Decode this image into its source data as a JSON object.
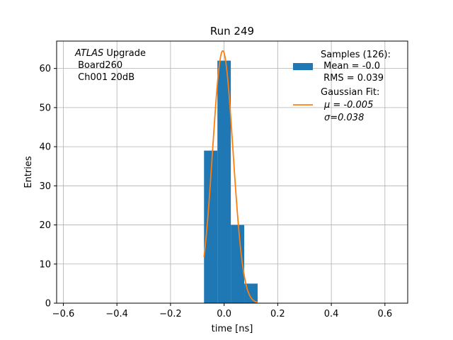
{
  "chart_data": {
    "type": "bar",
    "title": "Run 249",
    "xlabel": "time [ns]",
    "ylabel": "Entries",
    "xlim": [
      -0.625,
      0.685
    ],
    "ylim": [
      0,
      67
    ],
    "grid": true,
    "x_ticks": [
      -0.6,
      -0.4,
      -0.2,
      0.0,
      0.2,
      0.4,
      0.6
    ],
    "x_tick_labels": [
      "−0.6",
      "−0.4",
      "−0.2",
      "0.0",
      "0.2",
      "0.4",
      "0.6"
    ],
    "y_ticks": [
      0,
      10,
      20,
      30,
      40,
      50,
      60
    ],
    "y_tick_labels": [
      "0",
      "10",
      "20",
      "30",
      "40",
      "50",
      "60"
    ],
    "histogram": {
      "color": "#1f77b4",
      "bins": [
        {
          "left": -0.075,
          "right": -0.025,
          "count": 39
        },
        {
          "left": -0.025,
          "right": 0.025,
          "count": 62
        },
        {
          "left": 0.025,
          "right": 0.075,
          "count": 20
        },
        {
          "left": 0.075,
          "right": 0.125,
          "count": 5
        }
      ]
    },
    "fit": {
      "type": "gaussian",
      "color": "#ff7f0e",
      "mu": -0.005,
      "sigma": 0.038,
      "amplitude": 64.5,
      "x_range": [
        -0.075,
        0.125
      ]
    },
    "annotation": {
      "line1_italic": "ATLAS",
      "line1_rest": " Upgrade",
      "line2": " Board260",
      "line3": " Ch001 20dB"
    },
    "legend": {
      "placement": "top-right",
      "entries": [
        {
          "kind": "patch",
          "color": "#1f77b4",
          "lines": [
            "Samples (126):",
            " Mean = -0.0",
            " RMS = 0.039"
          ]
        },
        {
          "kind": "line",
          "color": "#ff7f0e",
          "lines": [
            "Gaussian Fit:",
            "μ = -0.005",
            "σ=0.038"
          ]
        }
      ]
    }
  }
}
